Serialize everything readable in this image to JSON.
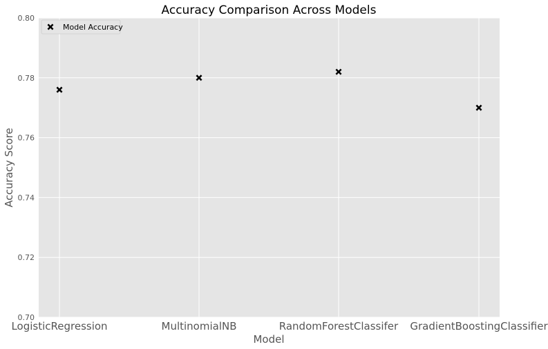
{
  "chart_data": {
    "type": "scatter",
    "title": "Accuracy Comparison Across Models",
    "xlabel": "Model",
    "ylabel": "Accuracy Score",
    "categories": [
      "LogisticRegression",
      "MultinomialNB",
      "RandomForestClassifer",
      "GradientBoostingClassifier"
    ],
    "series": [
      {
        "name": "Model Accuracy",
        "marker": "X",
        "color": "#000000",
        "values": [
          0.776,
          0.78,
          0.782,
          0.77
        ]
      }
    ],
    "ylim": [
      0.7,
      0.8
    ],
    "yticks": [
      "0.70",
      "0.72",
      "0.74",
      "0.76",
      "0.78",
      "0.80"
    ],
    "grid": true,
    "legend": "top-left",
    "colors": {
      "plot_background": "#e5e5e5",
      "grid": "#ffffff",
      "marker": "#000000"
    }
  }
}
